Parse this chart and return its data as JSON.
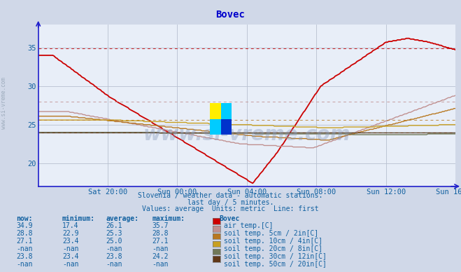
{
  "title": "Bovec",
  "title_color": "#0000cc",
  "bg_color": "#d0d8e8",
  "plot_bg_color": "#e8eef8",
  "grid_color": "#b8c0d0",
  "axis_color": "#2020cc",
  "text_color": "#1060a0",
  "ylim": [
    17,
    38
  ],
  "yticks": [
    20,
    25,
    30,
    35
  ],
  "x_end": 288,
  "xtick_labels": [
    "Sat 20:00",
    "Sun 00:00",
    "Sun 04:00",
    "Sun 08:00",
    "Sun 12:00",
    "Sun 16:00"
  ],
  "xtick_positions": [
    48,
    96,
    144,
    192,
    240,
    288
  ],
  "legend_colors": [
    "#cc0000",
    "#c09090",
    "#b87820",
    "#c8a020",
    "#707858",
    "#603818"
  ],
  "legend_labels": [
    "air temp.[C]",
    "soil temp. 5cm / 2in[C]",
    "soil temp. 10cm / 4in[C]",
    "soil temp. 20cm / 8in[C]",
    "soil temp. 30cm / 12in[C]",
    "soil temp. 50cm / 20in[C]"
  ],
  "stats_rows": [
    [
      "34.9",
      "17.4",
      "26.1",
      "35.7"
    ],
    [
      "28.8",
      "22.9",
      "25.3",
      "28.8"
    ],
    [
      "27.1",
      "23.4",
      "25.0",
      "27.1"
    ],
    [
      "-nan",
      "-nan",
      "-nan",
      "-nan"
    ],
    [
      "23.8",
      "23.4",
      "23.8",
      "24.2"
    ],
    [
      "-nan",
      "-nan",
      "-nan",
      "-nan"
    ]
  ],
  "footer_lines": [
    "Slovenia / weather data - automatic stations.",
    "last day / 5 minutes.",
    "Values: average  Units: metric  Line: first"
  ],
  "side_text": "www.si-vreme.com",
  "dashed_vals": [
    34.9,
    28.0,
    25.6,
    24.0
  ],
  "dashed_cols": [
    "#cc0000",
    "#c09090",
    "#b87820",
    "#606050"
  ]
}
